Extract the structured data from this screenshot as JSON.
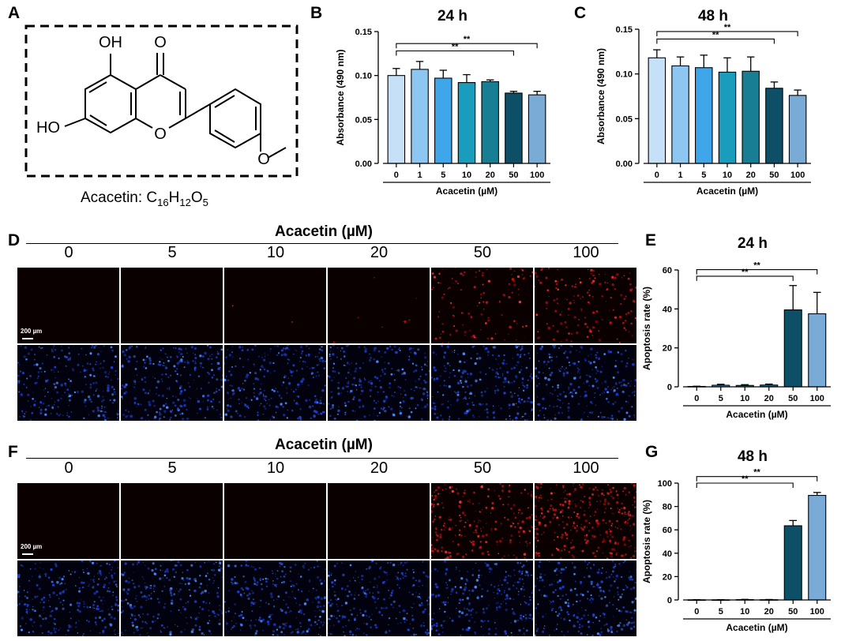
{
  "panels": {
    "a": {
      "letter": "A",
      "molecule": {
        "oh_top": "OH",
        "oh_left": "HO",
        "o_ketone": "O",
        "o_ring": "O",
        "caption": "Acacetin: C",
        "c_sub": "16",
        "h": "H",
        "h_sub": "12",
        "o": "O",
        "o_sub": "5"
      }
    },
    "b": {
      "letter": "B"
    },
    "c": {
      "letter": "C"
    },
    "d": {
      "letter": "D"
    },
    "e": {
      "letter": "E"
    },
    "f": {
      "letter": "F"
    },
    "g": {
      "letter": "G"
    }
  },
  "grid_d": {
    "title": "Acacetin (µM)",
    "columns": [
      "0",
      "5",
      "10",
      "20",
      "50",
      "100"
    ],
    "scale_bar": "200 µm"
  },
  "grid_f": {
    "title": "Acacetin (µM)",
    "columns": [
      "0",
      "5",
      "10",
      "20",
      "50",
      "100"
    ],
    "scale_bar": "200 µm"
  },
  "colors": {
    "c0": "#c6e0f7",
    "c1": "#8ec6f2",
    "c5": "#3fa6ea",
    "c10": "#1a9cbc",
    "c20": "#177e93",
    "c50": "#0d4f66",
    "c100": "#7aabd6"
  },
  "chart_data": [
    {
      "id": "b",
      "type": "bar",
      "title": "24 h",
      "categories": [
        "0",
        "1",
        "5",
        "10",
        "20",
        "50",
        "100"
      ],
      "values": [
        0.1,
        0.107,
        0.097,
        0.092,
        0.093,
        0.08,
        0.078
      ],
      "errors": [
        0.008,
        0.009,
        0.009,
        0.009,
        0.002,
        0.002,
        0.004
      ],
      "xlabel": "Acacetin (µM)",
      "ylabel": "Absorbance (490 nm)",
      "ylim": [
        0,
        0.15
      ],
      "yticks": [
        "0.00",
        "0.05",
        "0.10",
        "0.15"
      ],
      "significance": [
        {
          "from": "0",
          "to": "50",
          "label": "**"
        },
        {
          "from": "0",
          "to": "100",
          "label": "**"
        }
      ]
    },
    {
      "id": "c",
      "type": "bar",
      "title": "48 h",
      "categories": [
        "0",
        "1",
        "5",
        "10",
        "20",
        "50",
        "100"
      ],
      "values": [
        0.118,
        0.109,
        0.107,
        0.102,
        0.103,
        0.084,
        0.076
      ],
      "errors": [
        0.009,
        0.01,
        0.014,
        0.016,
        0.016,
        0.007,
        0.006
      ],
      "xlabel": "Acacetin (µM)",
      "ylabel": "Absorbance (490 nm)",
      "ylim": [
        0,
        0.15
      ],
      "yticks": [
        "0.00",
        "0.05",
        "0.10",
        "0.15"
      ],
      "significance": [
        {
          "from": "0",
          "to": "50",
          "label": "**"
        },
        {
          "from": "0",
          "to": "100",
          "label": "**"
        }
      ]
    },
    {
      "id": "e",
      "type": "bar",
      "title": "24 h",
      "categories": [
        "0",
        "5",
        "10",
        "20",
        "50",
        "100"
      ],
      "values": [
        0.2,
        0.8,
        0.7,
        0.9,
        39.5,
        37.5
      ],
      "errors": [
        0.1,
        0.5,
        0.4,
        0.5,
        12.5,
        11
      ],
      "xlabel": "Acacetin (µM)",
      "ylabel": "Apoptosis rate (%)",
      "ylim": [
        0,
        60
      ],
      "yticks": [
        "0",
        "20",
        "40",
        "60"
      ],
      "significance": [
        {
          "from": "0",
          "to": "50",
          "label": "**"
        },
        {
          "from": "0",
          "to": "100",
          "label": "**"
        }
      ]
    },
    {
      "id": "g",
      "type": "bar",
      "title": "48 h",
      "categories": [
        "0",
        "5",
        "10",
        "20",
        "50",
        "100"
      ],
      "values": [
        0.1,
        0.1,
        0.3,
        0.2,
        63.5,
        89.5
      ],
      "errors": [
        0.1,
        0.1,
        0.2,
        0.2,
        4.5,
        2.5
      ],
      "xlabel": "Acacetin (µM)",
      "ylabel": "Apoptosis rate (%)",
      "ylim": [
        0,
        100
      ],
      "yticks": [
        "0",
        "20",
        "40",
        "60",
        "80",
        "100"
      ],
      "significance": [
        {
          "from": "0",
          "to": "50",
          "label": "**"
        },
        {
          "from": "0",
          "to": "100",
          "label": "**"
        }
      ]
    }
  ]
}
